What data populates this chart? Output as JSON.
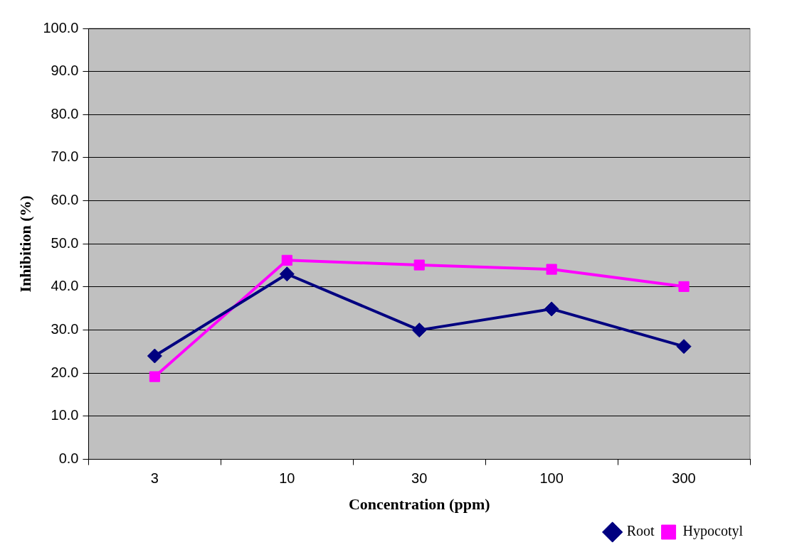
{
  "chart_data": {
    "type": "line",
    "xlabel": "Concentration (ppm)",
    "ylabel": "Inhibition (%)",
    "categories": [
      "3",
      "10",
      "30",
      "100",
      "300"
    ],
    "series": [
      {
        "name": "Root",
        "color": "#000080",
        "marker": "diamond",
        "values": [
          24.0,
          43.0,
          30.0,
          34.9,
          26.2
        ]
      },
      {
        "name": "Hypocotyl",
        "color": "#ff00ff",
        "marker": "square",
        "values": [
          19.2,
          46.2,
          45.1,
          44.1,
          40.1
        ]
      }
    ],
    "ylim": [
      0,
      100
    ],
    "yticks": [
      {
        "value": 0,
        "label": "0.0"
      },
      {
        "value": 10,
        "label": "10.0"
      },
      {
        "value": 20,
        "label": "20.0"
      },
      {
        "value": 30,
        "label": "30.0"
      },
      {
        "value": 40,
        "label": "40.0"
      },
      {
        "value": 50,
        "label": "50.0"
      },
      {
        "value": 60,
        "label": "60.0"
      },
      {
        "value": 70,
        "label": "70.0"
      },
      {
        "value": 80,
        "label": "80.0"
      },
      {
        "value": 90,
        "label": "90.0"
      },
      {
        "value": 100,
        "label": "100.0"
      }
    ],
    "grid": "y",
    "legend": "bottom right",
    "line_style": "solid"
  }
}
